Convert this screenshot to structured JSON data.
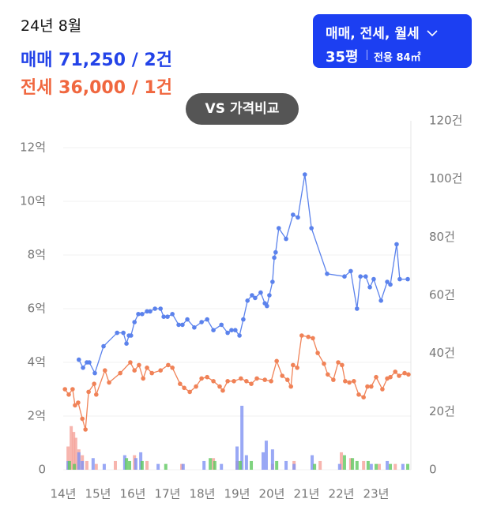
{
  "header": {
    "date": "24년 8월",
    "sale": "매매 71,250 / 2건",
    "jeonse": "전세 36,000 / 1건"
  },
  "filter": {
    "types": "매매, 전세, 월세",
    "size": "35평",
    "area": "전용 84㎡"
  },
  "compare_button": "VS 가격비교",
  "chart_data": {
    "type": "combo",
    "xlim": [
      2014,
      2024
    ],
    "xticks": [
      {
        "value": 2014,
        "label": "14년"
      },
      {
        "value": 2015,
        "label": "15년"
      },
      {
        "value": 2016,
        "label": "16년"
      },
      {
        "value": 2017,
        "label": "17년"
      },
      {
        "value": 2018,
        "label": "18년"
      },
      {
        "value": 2019,
        "label": "19년"
      },
      {
        "value": 2020,
        "label": "20년"
      },
      {
        "value": 2021,
        "label": "21년"
      },
      {
        "value": 2022,
        "label": "22년"
      },
      {
        "value": 2023,
        "label": "23년"
      }
    ],
    "ylim": [
      0,
      13
    ],
    "yticks": [
      0,
      {
        "value": 2,
        "label": "2억"
      },
      {
        "value": 4,
        "label": "4억"
      },
      {
        "value": 6,
        "label": "6억"
      },
      {
        "value": 8,
        "label": "8억"
      },
      {
        "value": 10,
        "label": "10억"
      },
      {
        "value": 12,
        "label": "12억"
      }
    ],
    "y2lim": [
      0,
      120
    ],
    "y2ticks": [
      0,
      {
        "value": 20,
        "label": "20건"
      },
      {
        "value": 40,
        "label": "40건"
      },
      {
        "value": 60,
        "label": "60건"
      },
      {
        "value": 80,
        "label": "80건"
      },
      {
        "value": 100,
        "label": "100건"
      },
      {
        "value": 120,
        "label": "120건"
      }
    ],
    "grid": true,
    "series": [
      {
        "type": "bar",
        "axis": "y2",
        "color": "#f5a29a",
        "x": [
          2014.14,
          2014.23,
          2014.3,
          2014.36,
          2014.45,
          2014.55,
          2014.68,
          2014.95,
          2015.5,
          2016.05,
          2016.41,
          2017.41,
          2018.32,
          2019.0,
          2020.02,
          2020.64,
          2021.39,
          2022.0,
          2022.27,
          2022.64,
          2023.09,
          2023.55
        ],
        "values": [
          8,
          15,
          13,
          11,
          7,
          5,
          3,
          2,
          3,
          5,
          3,
          2,
          4,
          3,
          2,
          3,
          3,
          6,
          4,
          3,
          2,
          2
        ]
      },
      {
        "type": "bar",
        "axis": "y2",
        "color": "#7f92f2",
        "x": [
          2014.14,
          2014.45,
          2014.55,
          2014.86,
          2015.18,
          2015.77,
          2016.09,
          2016.23,
          2016.73,
          2017.45,
          2018.05,
          2018.55,
          2019.0,
          2019.14,
          2019.27,
          2019.75,
          2019.84,
          2020.02,
          2020.41,
          2020.64,
          2021.16,
          2021.95,
          2022.86,
          2023.32,
          2023.77
        ],
        "values": [
          3,
          6,
          3,
          4,
          2,
          5,
          4,
          6,
          2,
          2,
          3,
          2,
          8,
          22,
          5,
          6,
          10,
          7,
          3,
          2,
          5,
          2,
          2,
          3,
          2
        ]
      },
      {
        "type": "bar",
        "axis": "y2",
        "color": "#5fc85f",
        "x": [
          2014.18,
          2014.32,
          2015.82,
          2015.91,
          2016.27,
          2016.95,
          2018.23,
          2018.36,
          2019.09,
          2019.41,
          2020.14,
          2021.23,
          2022.09,
          2022.32,
          2022.45,
          2022.77,
          2023.0,
          2023.41,
          2023.91
        ],
        "values": [
          3,
          2,
          4,
          3,
          3,
          2,
          4,
          3,
          3,
          3,
          3,
          2,
          5,
          4,
          3,
          3,
          2,
          2,
          2
        ]
      },
      {
        "type": "line",
        "axis": "y",
        "color": "#5b82ec",
        "x": [
          2014.45,
          2014.57,
          2014.68,
          2014.75,
          2014.91,
          2015.16,
          2015.55,
          2015.73,
          2015.82,
          2015.89,
          2015.95,
          2016.05,
          2016.16,
          2016.27,
          2016.41,
          2016.5,
          2016.64,
          2016.8,
          2016.89,
          2017.0,
          2017.14,
          2017.32,
          2017.43,
          2017.57,
          2017.77,
          2017.98,
          2018.14,
          2018.32,
          2018.55,
          2018.73,
          2018.84,
          2018.95,
          2019.07,
          2019.18,
          2019.3,
          2019.43,
          2019.52,
          2019.68,
          2019.8,
          2019.86,
          2019.93,
          2020.02,
          2020.07,
          2020.11,
          2020.2,
          2020.41,
          2020.61,
          2020.75,
          2020.95,
          2021.14,
          2021.59,
          2022.09,
          2022.27,
          2022.45,
          2022.55,
          2022.7,
          2022.82,
          2022.93,
          2023.14,
          2023.32,
          2023.41,
          2023.59,
          2023.68,
          2023.91
        ],
        "values": [
          4.1,
          3.8,
          4.0,
          4.0,
          3.6,
          4.6,
          5.1,
          5.1,
          4.7,
          5.0,
          5.0,
          5.5,
          5.8,
          5.8,
          5.9,
          5.9,
          6.0,
          6.0,
          5.7,
          5.7,
          5.8,
          5.4,
          5.4,
          5.6,
          5.3,
          5.5,
          5.6,
          5.2,
          5.4,
          5.1,
          5.2,
          5.2,
          5.0,
          5.6,
          6.3,
          6.5,
          6.4,
          6.6,
          6.2,
          6.1,
          6.5,
          7.0,
          7.9,
          8.1,
          9.0,
          8.6,
          9.5,
          9.4,
          11.0,
          9.0,
          7.3,
          7.2,
          7.4,
          6.0,
          7.2,
          7.2,
          6.8,
          7.1,
          6.3,
          7.0,
          6.9,
          8.4,
          7.1,
          7.1
        ]
      },
      {
        "type": "line",
        "axis": "y",
        "color": "#f08257",
        "x": [
          2014.05,
          2014.16,
          2014.27,
          2014.34,
          2014.43,
          2014.55,
          2014.64,
          2014.73,
          2014.89,
          2014.95,
          2015.2,
          2015.32,
          2015.64,
          2015.93,
          2016.05,
          2016.18,
          2016.3,
          2016.41,
          2016.55,
          2016.8,
          2017.02,
          2017.14,
          2017.36,
          2017.48,
          2017.64,
          2017.82,
          2017.98,
          2018.14,
          2018.32,
          2018.5,
          2018.59,
          2018.73,
          2018.91,
          2019.11,
          2019.27,
          2019.41,
          2019.57,
          2019.8,
          2019.98,
          2020.14,
          2020.3,
          2020.45,
          2020.55,
          2020.61,
          2020.73,
          2020.86,
          2021.05,
          2021.18,
          2021.32,
          2021.5,
          2021.61,
          2021.77,
          2021.91,
          2022.02,
          2022.11,
          2022.23,
          2022.36,
          2022.5,
          2022.64,
          2022.75,
          2022.86,
          2023.0,
          2023.18,
          2023.32,
          2023.41,
          2023.55,
          2023.66,
          2023.82,
          2023.93
        ],
        "values": [
          3.0,
          2.8,
          3.0,
          2.4,
          2.5,
          1.9,
          1.5,
          2.9,
          3.2,
          2.8,
          3.7,
          3.25,
          3.6,
          4.0,
          3.7,
          3.9,
          3.4,
          3.8,
          3.6,
          3.7,
          3.9,
          3.8,
          3.2,
          3.05,
          2.9,
          3.1,
          3.4,
          3.45,
          3.3,
          3.1,
          2.95,
          3.3,
          3.3,
          3.4,
          3.3,
          3.2,
          3.4,
          3.35,
          3.3,
          4.05,
          3.5,
          3.35,
          3.1,
          3.9,
          3.8,
          5.0,
          4.95,
          4.9,
          4.35,
          3.95,
          3.55,
          3.35,
          4.0,
          3.9,
          3.3,
          3.25,
          3.3,
          2.8,
          2.7,
          3.1,
          3.1,
          3.45,
          3.0,
          3.4,
          3.45,
          3.65,
          3.5,
          3.6,
          3.55
        ]
      }
    ]
  }
}
